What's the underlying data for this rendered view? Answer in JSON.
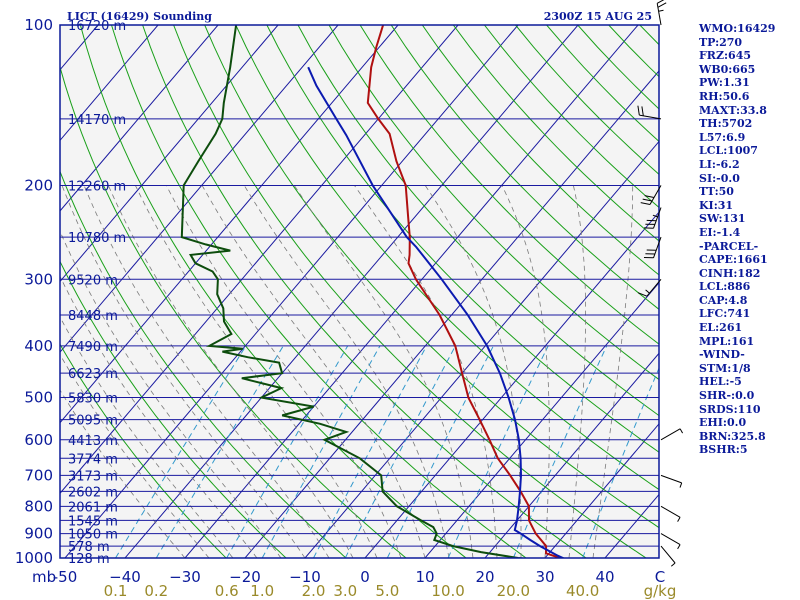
{
  "header": {
    "station_title": "LICT (16429) Sounding",
    "valid_time": "2300Z 15 AUG 25"
  },
  "indices": [
    "WMO:16429",
    "TP:270",
    "FRZ:645",
    "WB0:665",
    "PW:1.31",
    "RH:50.6",
    "MAXT:33.8",
    "TH:5702",
    "L57:6.9",
    "LCL:1007",
    "LI:-6.2",
    "SI:-0.0",
    "TT:50",
    "KI:31",
    "SW:131",
    "EI:-1.4",
    "-PARCEL-",
    "CAPE:1661",
    "CINH:182",
    "LCL:886",
    "CAP:4.8",
    "LFC:741",
    "EL:261",
    "MPL:161",
    "-WIND-",
    "STM:1/8",
    "HEL:-5",
    "SHR-:0.0",
    "SRDS:110",
    "EHI:0.0",
    "BRN:325.8",
    "BSHR:5"
  ],
  "colors": {
    "frame": "#0b1a99",
    "isotherm": "#1a1aa0",
    "isobar": "#1a1aa0",
    "dry_adiabat": "#1aa01a",
    "moist_adiabat": "#7a7a7a",
    "mixing_ratio": "#3399cc",
    "temperature": "#b01010",
    "dewpoint": "#0d4d0d",
    "parcel": "#0b1ab0",
    "axis_text": "#0b1a99",
    "mix_text": "#9a8a2a"
  },
  "chart_data": {
    "type": "line",
    "title": "LICT (16429) Sounding",
    "subtitle": "2300Z 15 AUG 25",
    "xlabel": "",
    "ylabel": "",
    "y_scale": "log-pressure",
    "xlim": [
      -50,
      50
    ],
    "ylim": [
      1000,
      100
    ],
    "pressure_ticks": [
      100,
      200,
      300,
      400,
      500,
      600,
      700,
      800,
      900,
      1000
    ],
    "temperature_ticks": [
      -50,
      -40,
      -30,
      -20,
      -10,
      0,
      10,
      20,
      30,
      40
    ],
    "temperature_tick_labels": [
      "-50",
      "−40",
      "−30",
      "−20",
      "−10",
      "0",
      "10",
      "20",
      "30",
      "40"
    ],
    "pressure_unit_label": "mb",
    "temperature_unit_label": "C",
    "mixing_ratio_labels": [
      "0.1",
      "0.2",
      "0.6",
      "1.0",
      "2.0",
      "3.0",
      "5.0",
      "10.0",
      "20.0",
      "40.0"
    ],
    "mixing_ratio_unit_label": "g/kg",
    "height_labels": [
      {
        "p": 100,
        "label": "16720 m"
      },
      {
        "p": 150,
        "label": "14170 m"
      },
      {
        "p": 200,
        "label": "12260 m"
      },
      {
        "p": 250,
        "label": "10780 m"
      },
      {
        "p": 300,
        "label": "9520 m"
      },
      {
        "p": 350,
        "label": "8448 m"
      },
      {
        "p": 400,
        "label": "7490 m"
      },
      {
        "p": 450,
        "label": "6623 m"
      },
      {
        "p": 500,
        "label": "5830 m"
      },
      {
        "p": 550,
        "label": "5095 m"
      },
      {
        "p": 600,
        "label": "4413 m"
      },
      {
        "p": 650,
        "label": "3774 m"
      },
      {
        "p": 700,
        "label": "3173 m"
      },
      {
        "p": 750,
        "label": "2602 m"
      },
      {
        "p": 800,
        "label": "2061 m"
      },
      {
        "p": 850,
        "label": "1545 m"
      },
      {
        "p": 900,
        "label": "1050 m"
      },
      {
        "p": 950,
        "label": "578 m"
      },
      {
        "p": 1000,
        "label": "128 m"
      }
    ],
    "series": [
      {
        "key": "temperature",
        "points": [
          [
            1007,
            33.8
          ],
          [
            1000,
            32.5
          ],
          [
            980,
            29.5
          ],
          [
            950,
            28.5
          ],
          [
            925,
            26.8
          ],
          [
            900,
            25.0
          ],
          [
            850,
            22.0
          ],
          [
            800,
            20.0
          ],
          [
            750,
            16.5
          ],
          [
            700,
            12.5
          ],
          [
            650,
            8.0
          ],
          [
            600,
            4.0
          ],
          [
            550,
            -0.5
          ],
          [
            500,
            -5.5
          ],
          [
            450,
            -10.0
          ],
          [
            400,
            -15.0
          ],
          [
            350,
            -22.0
          ],
          [
            300,
            -31.0
          ],
          [
            280,
            -34.5
          ],
          [
            270,
            -35.5
          ],
          [
            250,
            -38.0
          ],
          [
            230,
            -41.0
          ],
          [
            200,
            -46.0
          ],
          [
            180,
            -51.0
          ],
          [
            160,
            -56.0
          ],
          [
            150,
            -60.0
          ],
          [
            140,
            -64.0
          ],
          [
            120,
            -68.5
          ],
          [
            110,
            -70.5
          ],
          [
            100,
            -72.5
          ]
        ]
      },
      {
        "key": "dewpoint",
        "points": [
          [
            1007,
            29.0
          ],
          [
            1000,
            25.5
          ],
          [
            975,
            18.5
          ],
          [
            950,
            13.0
          ],
          [
            925,
            9.0
          ],
          [
            900,
            8.5
          ],
          [
            875,
            7.0
          ],
          [
            850,
            4.0
          ],
          [
            800,
            -2.0
          ],
          [
            750,
            -6.5
          ],
          [
            700,
            -9.0
          ],
          [
            650,
            -15.0
          ],
          [
            600,
            -23.5
          ],
          [
            580,
            -21.0
          ],
          [
            560,
            -26.5
          ],
          [
            540,
            -34.0
          ],
          [
            520,
            -30.0
          ],
          [
            500,
            -40.0
          ],
          [
            480,
            -38.0
          ],
          [
            460,
            -46.0
          ],
          [
            450,
            -40.0
          ],
          [
            430,
            -42.0
          ],
          [
            420,
            -48.0
          ],
          [
            410,
            -53.0
          ],
          [
            405,
            -50.0
          ],
          [
            400,
            -56.0
          ],
          [
            380,
            -54.0
          ],
          [
            360,
            -57.0
          ],
          [
            340,
            -59.0
          ],
          [
            320,
            -62.0
          ],
          [
            300,
            -64.0
          ],
          [
            290,
            -66.0
          ],
          [
            280,
            -70.0
          ],
          [
            270,
            -72.0
          ],
          [
            265,
            -66.0
          ],
          [
            258,
            -71.0
          ],
          [
            250,
            -76.0
          ],
          [
            220,
            -80.0
          ],
          [
            200,
            -83.0
          ],
          [
            180,
            -84.0
          ],
          [
            160,
            -85.0
          ],
          [
            150,
            -86.0
          ],
          [
            140,
            -88.0
          ],
          [
            120,
            -92.0
          ],
          [
            100,
            -97.0
          ]
        ]
      },
      {
        "key": "parcel",
        "points": [
          [
            1007,
            33.8
          ],
          [
            990,
            31.8
          ],
          [
            950,
            27.5
          ],
          [
            925,
            25.0
          ],
          [
            900,
            22.5
          ],
          [
            886,
            21.0
          ],
          [
            850,
            20.0
          ],
          [
            800,
            18.3
          ],
          [
            750,
            16.4
          ],
          [
            700,
            14.3
          ],
          [
            650,
            11.8
          ],
          [
            600,
            8.9
          ],
          [
            550,
            5.4
          ],
          [
            500,
            1.2
          ],
          [
            450,
            -3.7
          ],
          [
            400,
            -9.7
          ],
          [
            350,
            -17.3
          ],
          [
            300,
            -26.7
          ],
          [
            261,
            -35.5
          ],
          [
            250,
            -38.5
          ],
          [
            200,
            -51.5
          ],
          [
            161,
            -63.0
          ],
          [
            150,
            -67.0
          ],
          [
            130,
            -75.0
          ],
          [
            120,
            -79.0
          ]
        ]
      }
    ],
    "wind_barbs": [
      {
        "p": 100,
        "dir": 350,
        "spd": 25
      },
      {
        "p": 150,
        "dir": 280,
        "spd": 20
      },
      {
        "p": 200,
        "dir": 210,
        "spd": 30
      },
      {
        "p": 220,
        "dir": 200,
        "spd": 35
      },
      {
        "p": 250,
        "dir": 200,
        "spd": 30
      },
      {
        "p": 300,
        "dir": 220,
        "spd": 15
      },
      {
        "p": 600,
        "dir": 60,
        "spd": 5
      },
      {
        "p": 700,
        "dir": 110,
        "spd": 5
      },
      {
        "p": 800,
        "dir": 120,
        "spd": 5
      },
      {
        "p": 900,
        "dir": 120,
        "spd": 5
      },
      {
        "p": 950,
        "dir": 140,
        "spd": 5
      }
    ]
  }
}
